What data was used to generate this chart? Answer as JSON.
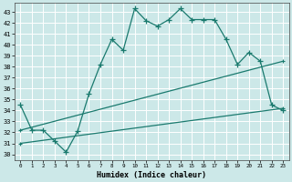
{
  "xlabel": "Humidex (Indice chaleur)",
  "xlim": [
    -0.5,
    23.5
  ],
  "ylim": [
    29.5,
    43.8
  ],
  "xticks": [
    0,
    1,
    2,
    3,
    4,
    5,
    6,
    7,
    8,
    9,
    10,
    11,
    12,
    13,
    14,
    15,
    16,
    17,
    18,
    19,
    20,
    21,
    22,
    23
  ],
  "yticks": [
    30,
    31,
    32,
    33,
    34,
    35,
    36,
    37,
    38,
    39,
    40,
    41,
    42,
    43
  ],
  "bg_color": "#cce8e8",
  "grid_color": "#ffffff",
  "line_color": "#1a7a6e",
  "line1_x": [
    0,
    1,
    2,
    3,
    4,
    5,
    6,
    7,
    8,
    9,
    10,
    11,
    12,
    13,
    14,
    15,
    16,
    17,
    18,
    19,
    20,
    21,
    22,
    23
  ],
  "line1_y": [
    34.5,
    32.2,
    32.2,
    31.2,
    30.2,
    32.1,
    35.5,
    38.2,
    40.5,
    39.5,
    43.3,
    42.2,
    41.7,
    42.3,
    43.3,
    42.3,
    42.3,
    42.3,
    40.5,
    38.2,
    39.3,
    38.5,
    34.5,
    34.0
  ],
  "line2_x": [
    0,
    23
  ],
  "line2_y": [
    32.2,
    38.5
  ],
  "line3_x": [
    0,
    23
  ],
  "line3_y": [
    31.0,
    34.2
  ],
  "xlabel_fontsize": 6,
  "tick_fontsize": 5
}
